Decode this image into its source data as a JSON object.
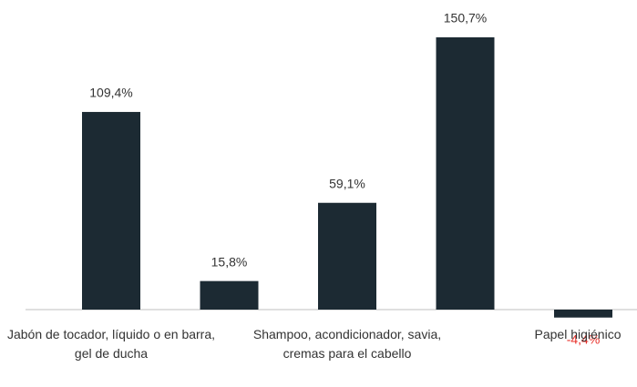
{
  "chart_data": {
    "type": "bar",
    "categories": [
      "Jabón de tocador, líquido o en barra, gel de ducha",
      null,
      "Shampoo, acondicionador, savia, cremas para el cabello",
      null,
      "Papel higiénico"
    ],
    "values": [
      109.4,
      15.8,
      59.1,
      150.7,
      -4.4
    ],
    "value_labels": [
      "109,4%",
      "15,8%",
      "59,1%",
      "150,7%",
      "-4,4%"
    ],
    "color": "#1c2a33",
    "label_color": "#333333",
    "negative_label_color": "#e8302a"
  }
}
